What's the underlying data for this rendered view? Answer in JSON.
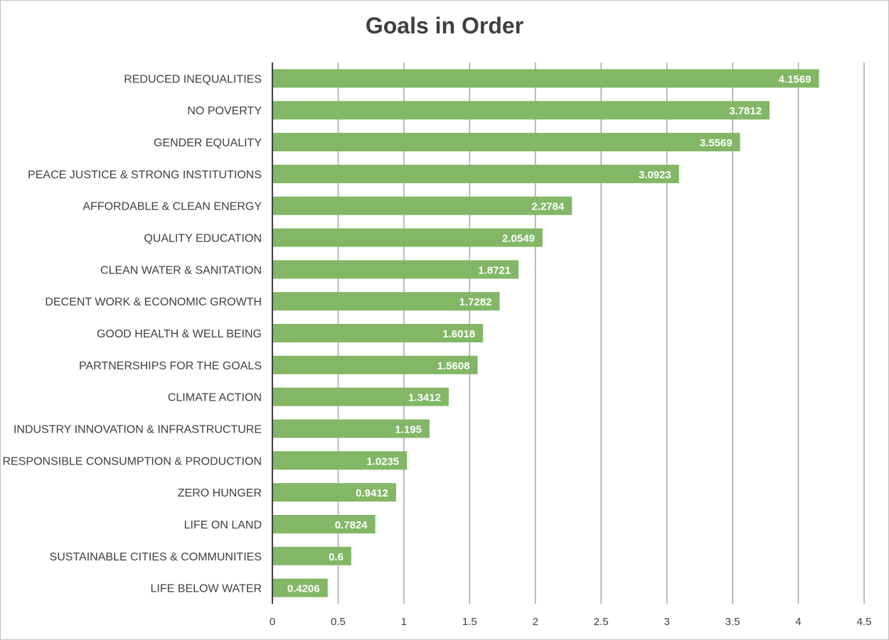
{
  "chart_data": {
    "type": "bar",
    "orientation": "horizontal",
    "title": "Goals in Order",
    "xlabel": "",
    "ylabel": "",
    "categories": [
      "REDUCED INEQUALITIES",
      "NO POVERTY",
      "GENDER EQUALITY",
      "PEACE JUSTICE & STRONG INSTITUTIONS",
      "AFFORDABLE & CLEAN ENERGY",
      "QUALITY EDUCATION",
      "CLEAN WATER & SANITATION",
      "DECENT WORK & ECONOMIC GROWTH",
      "GOOD HEALTH & WELL BEING",
      "PARTNERSHIPS FOR THE GOALS",
      "CLIMATE ACTION",
      "INDUSTRY INNOVATION & INFRASTRUCTURE",
      "RESPONSIBLE CONSUMPTION & PRODUCTION",
      "ZERO HUNGER",
      "LIFE ON LAND",
      "SUSTAINABLE CITIES & COMMUNITIES",
      "LIFE BELOW WATER"
    ],
    "values": [
      4.1569,
      3.7812,
      3.5569,
      3.0923,
      2.2784,
      2.0549,
      1.8721,
      1.7282,
      1.6018,
      1.5608,
      1.3412,
      1.195,
      1.0235,
      0.9412,
      0.7824,
      0.6,
      0.4206
    ],
    "value_labels": [
      "4.1569",
      "3.7812",
      "3.5569",
      "3.0923",
      "2.2784",
      "2.0549",
      "1.8721",
      "1.7282",
      "1.6018",
      "1.5608",
      "1.3412",
      "1.195",
      "1.0235",
      "0.9412",
      "0.7824",
      "0.6",
      "0.4206"
    ],
    "xlim": [
      0,
      4.5
    ],
    "ticks": [
      0,
      0.5,
      1,
      1.5,
      2,
      2.5,
      3,
      3.5,
      4,
      4.5
    ],
    "tick_labels": [
      "0",
      "0.5",
      "1",
      "1.5",
      "2",
      "2.5",
      "3",
      "3.5",
      "4",
      "4.5"
    ],
    "grid": true,
    "legend": "none",
    "colors": {
      "bar": "#82b765",
      "gridline": "#a6a6a6",
      "axis": "#404040",
      "text": "#404040",
      "value_text": "#ffffff"
    }
  }
}
